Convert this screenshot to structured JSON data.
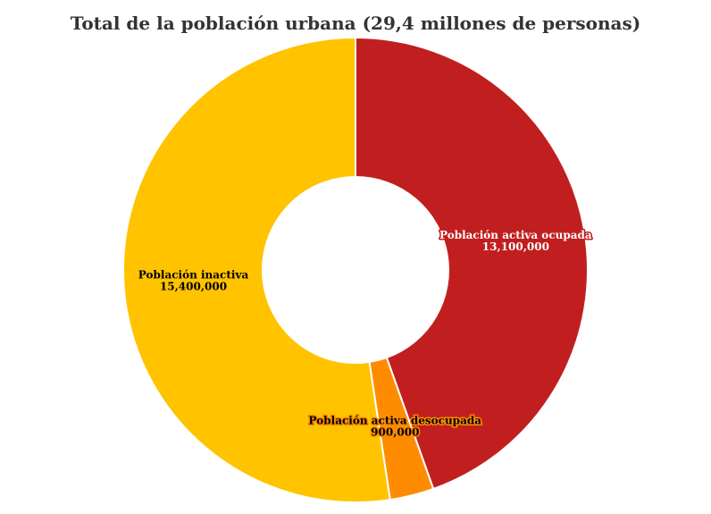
{
  "chart_data": {
    "type": "pie",
    "variant": "donut",
    "title": "Total de la población urbana (29,4 millones de personas)",
    "series": [
      {
        "name": "Población activa ocupada",
        "value": 13100000,
        "value_label": "13,100,000",
        "color": "#c11f1f",
        "label_fill": "#ffffff",
        "label_outline": "#c11f1f"
      },
      {
        "name": "Población activa desocupada",
        "value": 900000,
        "value_label": "900,000",
        "color": "#ff8c00",
        "label_fill": "#000000",
        "label_outline": "#ff8c00"
      },
      {
        "name": "Población inactiva",
        "value": 15400000,
        "value_label": "15,400,000",
        "color": "#ffc300",
        "label_fill": "#000000",
        "label_outline": "#ffc300"
      }
    ],
    "start_angle": "12 o'clock",
    "direction": "clockwise",
    "legend": "none"
  }
}
